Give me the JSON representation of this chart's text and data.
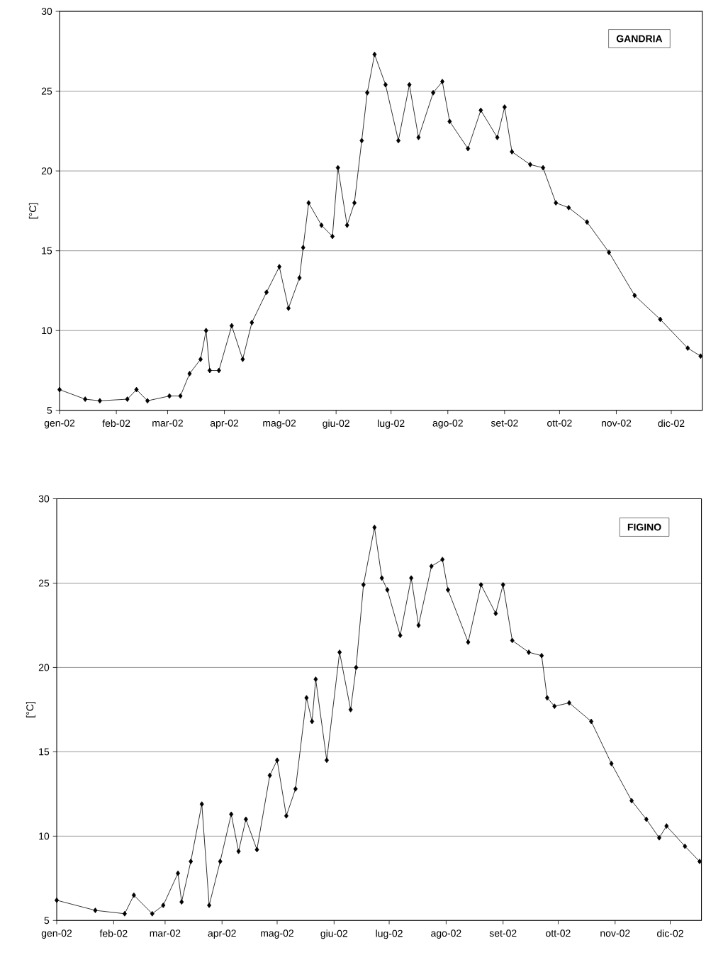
{
  "chart_data": [
    {
      "type": "line",
      "title": "GANDRIA",
      "ylabel": "[°C]",
      "color": "#000000",
      "marker": "diamond",
      "line_style": "solid",
      "grid": "y",
      "xlim": [
        "2002-01-01",
        "2002-12-18"
      ],
      "ylim": [
        5,
        30
      ],
      "yticks": [
        5,
        10,
        15,
        20,
        25,
        30
      ],
      "xticks": [
        {
          "value": "2002-01-01",
          "label": "gen-02"
        },
        {
          "value": "2002-02-01",
          "label": "feb-02"
        },
        {
          "value": "2002-03-01",
          "label": "mar-02"
        },
        {
          "value": "2002-04-01",
          "label": "apr-02"
        },
        {
          "value": "2002-05-01",
          "label": "mag-02"
        },
        {
          "value": "2002-06-01",
          "label": "giu-02"
        },
        {
          "value": "2002-07-01",
          "label": "lug-02"
        },
        {
          "value": "2002-08-01",
          "label": "ago-02"
        },
        {
          "value": "2002-09-01",
          "label": "set-02"
        },
        {
          "value": "2002-10-01",
          "label": "ott-02"
        },
        {
          "value": "2002-11-01",
          "label": "nov-02"
        },
        {
          "value": "2002-12-01",
          "label": "dic-02"
        }
      ],
      "x": [
        "2002-01-01",
        "2002-01-15",
        "2002-01-23",
        "2002-02-07",
        "2002-02-12",
        "2002-02-18",
        "2002-03-02",
        "2002-03-08",
        "2002-03-13",
        "2002-03-19",
        "2002-03-22",
        "2002-03-24",
        "2002-03-29",
        "2002-04-05",
        "2002-04-11",
        "2002-04-16",
        "2002-04-24",
        "2002-05-01",
        "2002-05-06",
        "2002-05-12",
        "2002-05-14",
        "2002-05-17",
        "2002-05-24",
        "2002-05-30",
        "2002-06-02",
        "2002-06-07",
        "2002-06-11",
        "2002-06-15",
        "2002-06-18",
        "2002-06-22",
        "2002-06-28",
        "2002-07-05",
        "2002-07-11",
        "2002-07-16",
        "2002-07-24",
        "2002-07-29",
        "2002-08-02",
        "2002-08-12",
        "2002-08-19",
        "2002-08-28",
        "2002-09-01",
        "2002-09-05",
        "2002-09-15",
        "2002-09-22",
        "2002-09-29",
        "2002-10-06",
        "2002-10-16",
        "2002-10-28",
        "2002-11-11",
        "2002-11-25",
        "2002-12-10",
        "2002-12-17"
      ],
      "values": [
        6.3,
        5.7,
        5.6,
        5.7,
        6.3,
        5.6,
        5.9,
        5.9,
        7.3,
        8.2,
        10.0,
        7.5,
        7.5,
        10.3,
        8.2,
        10.5,
        12.4,
        14.0,
        11.4,
        13.3,
        15.2,
        18.0,
        16.6,
        15.9,
        20.2,
        16.6,
        18.0,
        21.9,
        24.9,
        27.3,
        25.4,
        21.9,
        25.4,
        22.1,
        24.9,
        25.6,
        23.1,
        21.4,
        23.8,
        22.1,
        24.0,
        21.2,
        20.4,
        20.2,
        18.0,
        17.7,
        16.8,
        14.9,
        12.2,
        10.7,
        8.9,
        8.4
      ]
    },
    {
      "type": "line",
      "title": "FIGINO",
      "ylabel": "[°C]",
      "color": "#000000",
      "marker": "diamond",
      "line_style": "solid",
      "grid": "y",
      "xlim": [
        "2002-01-01",
        "2002-12-18"
      ],
      "ylim": [
        5,
        30
      ],
      "yticks": [
        5,
        10,
        15,
        20,
        25,
        30
      ],
      "xticks": [
        {
          "value": "2002-01-01",
          "label": "gen-02"
        },
        {
          "value": "2002-02-01",
          "label": "feb-02"
        },
        {
          "value": "2002-03-01",
          "label": "mar-02"
        },
        {
          "value": "2002-04-01",
          "label": "apr-02"
        },
        {
          "value": "2002-05-01",
          "label": "mag-02"
        },
        {
          "value": "2002-06-01",
          "label": "giu-02"
        },
        {
          "value": "2002-07-01",
          "label": "lug-02"
        },
        {
          "value": "2002-08-01",
          "label": "ago-02"
        },
        {
          "value": "2002-09-01",
          "label": "set-02"
        },
        {
          "value": "2002-10-01",
          "label": "ott-02"
        },
        {
          "value": "2002-11-01",
          "label": "nov-02"
        },
        {
          "value": "2002-12-01",
          "label": "dic-02"
        }
      ],
      "x": [
        "2002-01-01",
        "2002-01-22",
        "2002-02-07",
        "2002-02-12",
        "2002-02-22",
        "2002-02-28",
        "2002-03-08",
        "2002-03-10",
        "2002-03-15",
        "2002-03-21",
        "2002-03-25",
        "2002-03-31",
        "2002-04-06",
        "2002-04-10",
        "2002-04-14",
        "2002-04-20",
        "2002-04-27",
        "2002-05-01",
        "2002-05-06",
        "2002-05-11",
        "2002-05-17",
        "2002-05-20",
        "2002-05-22",
        "2002-05-28",
        "2002-06-04",
        "2002-06-10",
        "2002-06-13",
        "2002-06-17",
        "2002-06-23",
        "2002-06-27",
        "2002-06-30",
        "2002-07-07",
        "2002-07-13",
        "2002-07-17",
        "2002-07-24",
        "2002-07-30",
        "2002-08-02",
        "2002-08-13",
        "2002-08-20",
        "2002-08-28",
        "2002-09-01",
        "2002-09-06",
        "2002-09-15",
        "2002-09-22",
        "2002-09-25",
        "2002-09-29",
        "2002-10-07",
        "2002-10-19",
        "2002-10-30",
        "2002-11-10",
        "2002-11-18",
        "2002-11-25",
        "2002-11-29",
        "2002-12-09",
        "2002-12-17"
      ],
      "values": [
        6.2,
        5.6,
        5.4,
        6.5,
        5.4,
        5.9,
        7.8,
        6.1,
        8.5,
        11.9,
        5.9,
        8.5,
        11.3,
        9.1,
        11.0,
        9.2,
        13.6,
        14.5,
        11.2,
        12.8,
        18.2,
        16.8,
        19.3,
        14.5,
        20.9,
        17.5,
        20.0,
        24.9,
        28.3,
        25.3,
        24.6,
        21.9,
        25.3,
        22.5,
        26.0,
        26.4,
        24.6,
        21.5,
        24.9,
        23.2,
        24.9,
        21.6,
        20.9,
        20.7,
        18.2,
        17.7,
        17.9,
        16.8,
        14.3,
        12.1,
        11.0,
        9.9,
        10.6,
        9.4,
        8.5
      ]
    }
  ]
}
